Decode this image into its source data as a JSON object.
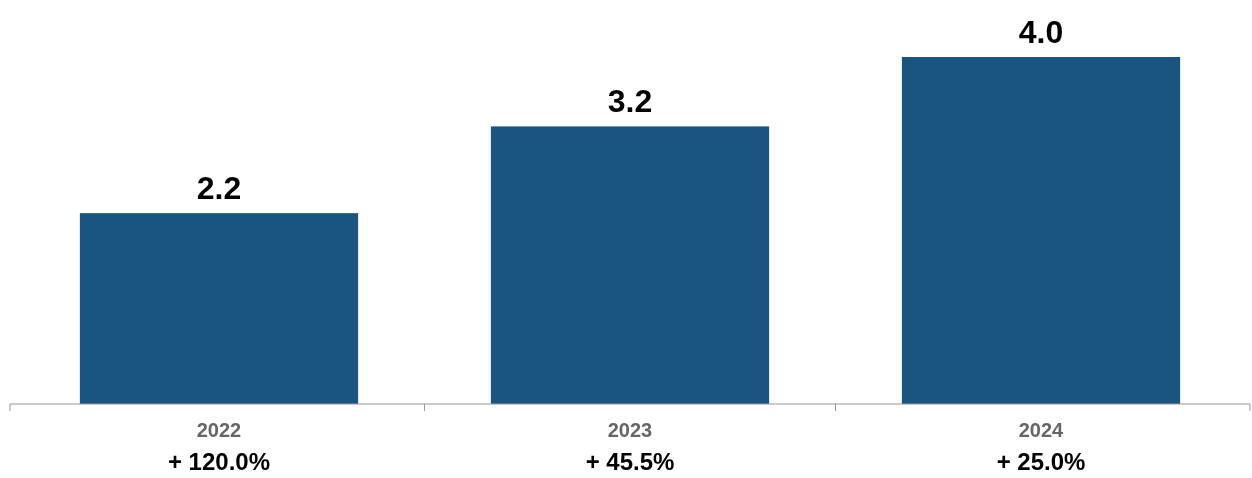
{
  "chart_data": {
    "type": "bar",
    "categories": [
      "2022",
      "2023",
      "2024"
    ],
    "values": [
      2.2,
      3.2,
      4.0
    ],
    "color": "#1a5580",
    "value_labels": [
      "2.2",
      "3.2",
      "4.0"
    ],
    "annotations": [
      "+ 120.0%",
      "+ 45.5%",
      "+ 25.0%"
    ]
  }
}
